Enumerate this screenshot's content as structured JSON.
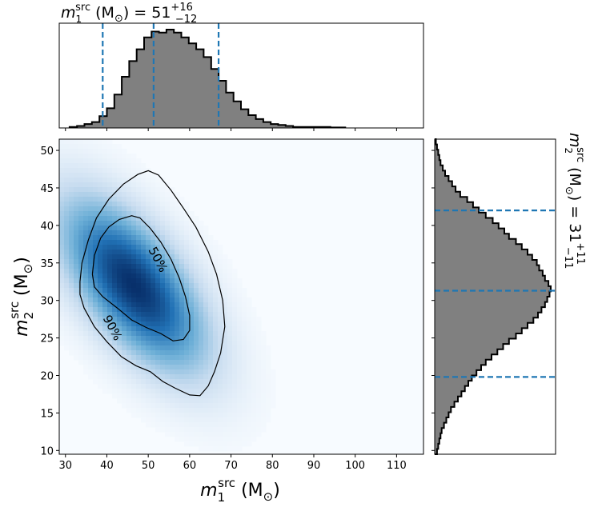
{
  "chart_data": [
    {
      "type": "heatmap",
      "panel": "joint",
      "xlabel": {
        "var": "m",
        "sub": "1",
        "sup": "src",
        "unit": "(M",
        "unit_sub": "⊙",
        "close": ")"
      },
      "ylabel": {
        "var": "m",
        "sub": "2",
        "sup": "src",
        "unit": "(M",
        "unit_sub": "⊙",
        "close": ")"
      },
      "xlim": [
        28.5,
        116.5
      ],
      "ylim": [
        9.5,
        51.5
      ],
      "xticks": [
        30,
        40,
        50,
        60,
        70,
        80,
        90,
        100,
        110
      ],
      "yticks": [
        10,
        15,
        20,
        25,
        30,
        35,
        40,
        45,
        50
      ],
      "colormap": "Blues",
      "density_peak": {
        "m1": 46.5,
        "m2": 32.0
      },
      "contours": [
        {
          "label": "50%",
          "points": [
            [
              36.5,
              33.5
            ],
            [
              37,
              36
            ],
            [
              38.5,
              38.3
            ],
            [
              40.5,
              39.8
            ],
            [
              43,
              40.8
            ],
            [
              46,
              41.3
            ],
            [
              48,
              41
            ],
            [
              50.5,
              39.6
            ],
            [
              53,
              37.8
            ],
            [
              55.5,
              35.5
            ],
            [
              57.5,
              33
            ],
            [
              59,
              30.5
            ],
            [
              60,
              28
            ],
            [
              60,
              26
            ],
            [
              58.5,
              24.8
            ],
            [
              56,
              24.6
            ],
            [
              53,
              25.6
            ],
            [
              49.5,
              26.4
            ],
            [
              46,
              27.4
            ],
            [
              42.5,
              29
            ],
            [
              39,
              30.5
            ],
            [
              37,
              31.8
            ],
            [
              36.5,
              33.5
            ]
          ]
        },
        {
          "label": "90%",
          "points": [
            [
              33.5,
              32.5
            ],
            [
              34,
              35
            ],
            [
              35.5,
              38
            ],
            [
              37.5,
              41
            ],
            [
              40.5,
              43.5
            ],
            [
              44,
              45.5
            ],
            [
              47.5,
              46.8
            ],
            [
              50,
              47.3
            ],
            [
              52.5,
              46.7
            ],
            [
              55.5,
              44.7
            ],
            [
              58.5,
              42.3
            ],
            [
              61.5,
              39.8
            ],
            [
              64.5,
              36.5
            ],
            [
              66.5,
              33.5
            ],
            [
              68,
              30
            ],
            [
              68.5,
              26.5
            ],
            [
              67.5,
              23
            ],
            [
              66,
              20.5
            ],
            [
              64.5,
              18.6
            ],
            [
              62.5,
              17.3
            ],
            [
              60,
              17.4
            ],
            [
              56.5,
              18.3
            ],
            [
              53.5,
              19.2
            ],
            [
              50.5,
              20.5
            ],
            [
              47,
              21.3
            ],
            [
              43.5,
              22.5
            ],
            [
              40,
              24.5
            ],
            [
              37,
              26.5
            ],
            [
              34.5,
              29
            ],
            [
              33.5,
              30.8
            ],
            [
              33.5,
              32.5
            ]
          ]
        }
      ]
    },
    {
      "type": "bar",
      "panel": "marginal-top",
      "title": {
        "var": "m",
        "sub": "1",
        "sup": "src",
        "unit": "(M",
        "unit_sub": "⊙",
        "close": ")",
        "eq": "= 51",
        "plus": "+16",
        "minus": "−12"
      },
      "x_edges_start": 31.0,
      "bin_width": 1.8,
      "values": [
        1,
        2,
        4,
        6,
        12,
        20,
        34,
        52,
        68,
        80,
        92,
        98,
        97,
        100,
        97,
        92,
        86,
        80,
        72,
        60,
        48,
        36,
        27,
        19,
        13,
        9,
        6,
        4,
        3,
        2,
        1,
        1,
        1,
        1,
        1,
        0.5,
        0.5
      ],
      "quantile_lines": [
        39.0,
        51.3,
        67.0
      ],
      "colors": {
        "fill": "#808080",
        "edge": "#000000",
        "quantile": "#1f77b4"
      }
    },
    {
      "type": "bar",
      "panel": "marginal-right",
      "orientation": "horizontal",
      "title": {
        "var": "m",
        "sub": "2",
        "sup": "src",
        "unit": "(M",
        "unit_sub": "⊙",
        "close": ")",
        "eq": "= 31",
        "plus": "+11",
        "minus": "−11"
      },
      "y_edges_start": 9.5,
      "bin_width": 0.7,
      "values": [
        2,
        3,
        4,
        5,
        6,
        8,
        10,
        12,
        14,
        17,
        20,
        23,
        26,
        29,
        32,
        36,
        40,
        44,
        49,
        54,
        59,
        64,
        70,
        75,
        80,
        85,
        89,
        92,
        95,
        97,
        99,
        100,
        98,
        95,
        93,
        90,
        88,
        84,
        80,
        75,
        70,
        64,
        60,
        55,
        50,
        44,
        38,
        33,
        28,
        22,
        18,
        15,
        12,
        9,
        7,
        5,
        4,
        3,
        2,
        1
      ],
      "quantile_lines": [
        19.8,
        31.3,
        42.0
      ],
      "colors": {
        "fill": "#808080",
        "edge": "#000000",
        "quantile": "#1f77b4"
      }
    }
  ]
}
